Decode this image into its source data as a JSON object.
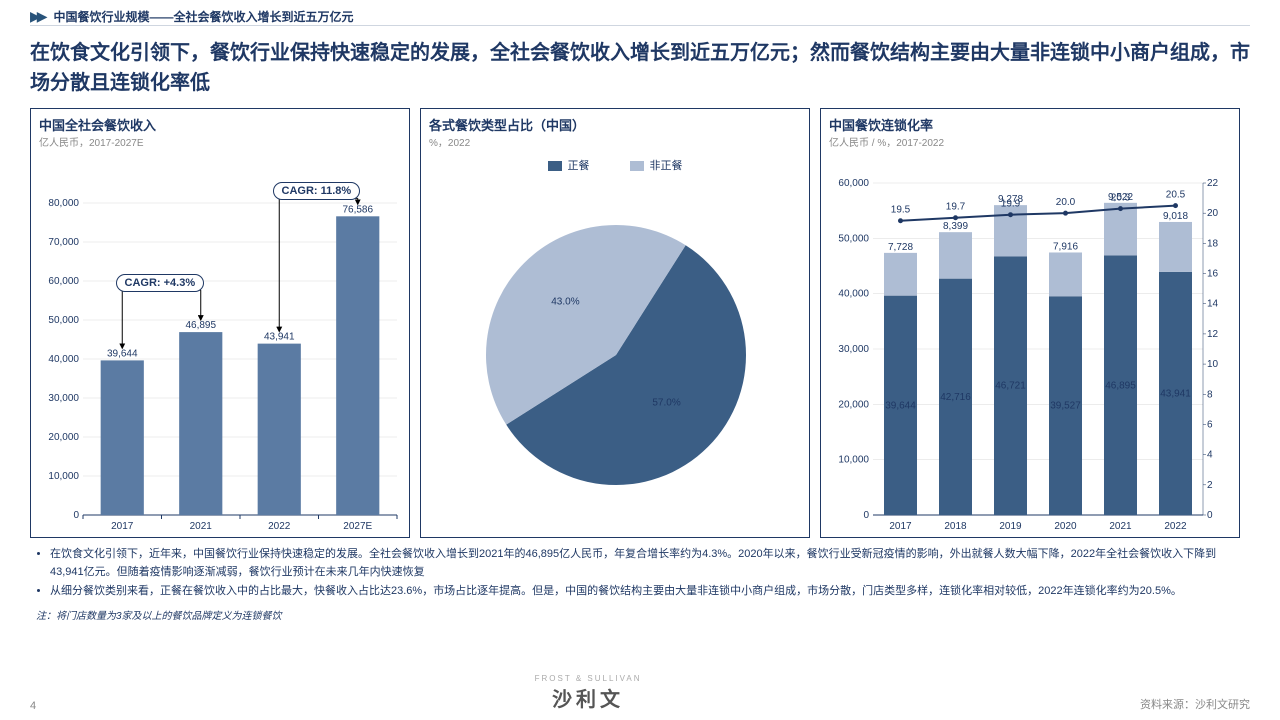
{
  "header": {
    "breadcrumb": "中国餐饮行业规模——全社会餐饮收入增长到近五万亿元"
  },
  "title": "在饮食文化引领下，餐饮行业保持快速稳定的发展，全社会餐饮收入增长到近五万亿元；然而餐饮结构主要由大量非连锁中小商户组成，市场分散且连锁化率低",
  "colors": {
    "dark_navy": "#1f3864",
    "bar_dark": "#3b5e85",
    "bar_light": "#aebdd4",
    "grid": "#d9d9d9",
    "text_grey": "#808080"
  },
  "chart1": {
    "title": "中国全社会餐饮收入",
    "subtitle": "亿人民币，2017-2027E",
    "type": "bar",
    "categories": [
      "2017",
      "2021",
      "2022",
      "2027E"
    ],
    "values": [
      39644,
      46895,
      43941,
      76586
    ],
    "ylim": [
      0,
      80000
    ],
    "ytick_step": 10000,
    "bar_color": "#5b7ba3",
    "bar_width": 0.55,
    "cagr1": {
      "label": "CAGR: +4.3%",
      "from": 0,
      "to": 1
    },
    "cagr2": {
      "label": "CAGR: 11.8%",
      "from": 2,
      "to": 3
    },
    "label_fontsize": 10
  },
  "chart2": {
    "title": "各式餐饮类型占比（中国）",
    "subtitle": "%，2022",
    "type": "pie",
    "legend": [
      {
        "label": "正餐",
        "color": "#3b5e85"
      },
      {
        "label": "非正餐",
        "color": "#aebdd4"
      }
    ],
    "slices": [
      {
        "label": "57.0%",
        "value": 57.0,
        "color": "#3b5e85"
      },
      {
        "label": "43.0%",
        "value": 43.0,
        "color": "#aebdd4"
      }
    ]
  },
  "chart3": {
    "title": "中国餐饮连锁化率",
    "subtitle": "亿人民币 / %，2017-2022",
    "type": "stacked_bar_line",
    "categories": [
      "2017",
      "2018",
      "2019",
      "2020",
      "2021",
      "2022"
    ],
    "bottom_values": [
      39644,
      42716,
      46721,
      39527,
      46895,
      43941
    ],
    "top_values": [
      7728,
      8399,
      9278,
      7916,
      9522,
      9018
    ],
    "line_values": [
      19.5,
      19.7,
      19.9,
      20.0,
      20.3,
      20.5
    ],
    "y1_lim": [
      0,
      60000
    ],
    "y1_tick_step": 10000,
    "y2_lim": [
      0,
      22
    ],
    "y2_tick_step": 2,
    "bottom_color": "#3b5e85",
    "top_color": "#aebdd4",
    "line_color": "#1f3864",
    "line_width": 2,
    "bar_width": 0.6
  },
  "bullets": [
    "在饮食文化引领下，近年来，中国餐饮行业保持快速稳定的发展。全社会餐饮收入增长到2021年的46,895亿人民币，年复合增长率约为4.3%。2020年以来，餐饮行业受新冠疫情的影响，外出就餐人数大幅下降，2022年全社会餐饮收入下降到43,941亿元。但随着疫情影响逐渐减弱，餐饮行业预计在未来几年内快速恢复",
    "从细分餐饮类别来看，正餐在餐饮收入中的占比最大，快餐收入占比达23.6%，市场占比逐年提高。但是，中国的餐饮结构主要由大量非连锁中小商户组成，市场分散，门店类型多样，连锁化率相对较低，2022年连锁化率约为20.5%。"
  ],
  "footnote": "注：将门店数量为3家及以上的餐饮品牌定义为连锁餐饮",
  "footer": {
    "page": "4",
    "brand_small": "FROST & SULLIVAN",
    "brand": "沙利文",
    "source": "资料来源：沙利文研究"
  }
}
